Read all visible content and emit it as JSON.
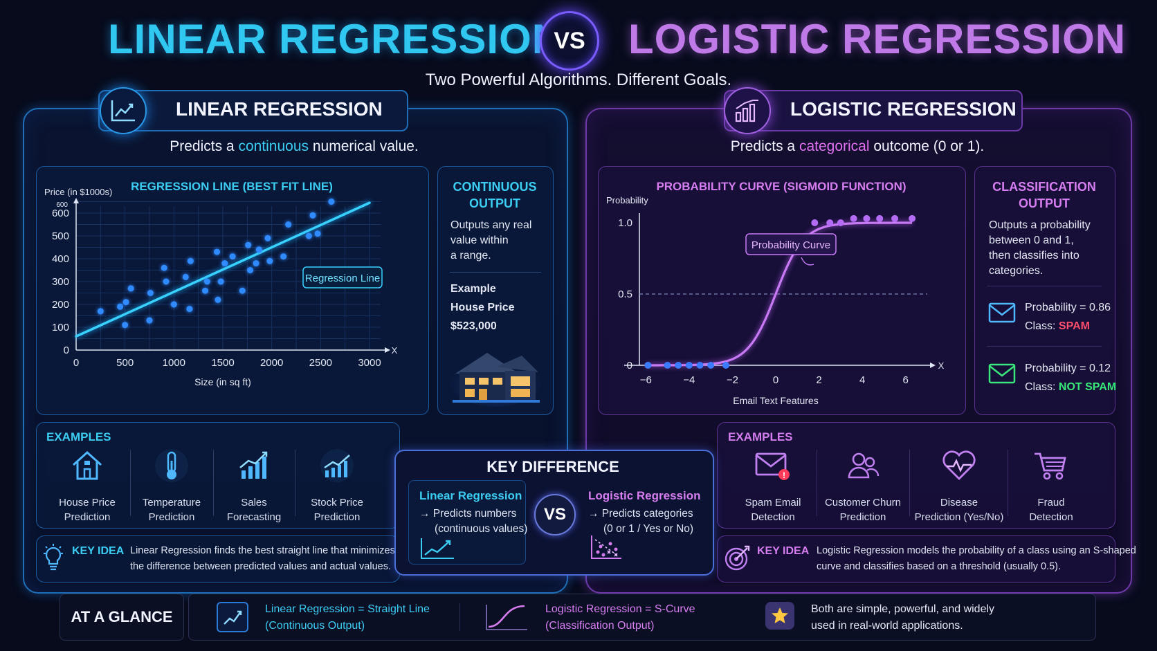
{
  "header": {
    "title_left": "LINEAR REGRESSION",
    "vs": "VS",
    "title_right": "LOGISTIC REGRESSION",
    "subtitle": "Two Powerful Algorithms. Different Goals."
  },
  "linear": {
    "heading": "LINEAR REGRESSION",
    "tagline_pre": "Predicts a ",
    "tagline_highlight": "continuous",
    "tagline_post": " numerical value.",
    "chart": {
      "title": "REGRESSION LINE (BEST FIT LINE)",
      "ylabel": "Price (in $1000s)",
      "xlabel": "Size (in sq ft)",
      "top_tick": "600",
      "x_axis_letter": "X",
      "annotation": "Regression Line"
    },
    "side": {
      "title_line1": "CONTINUOUS",
      "title_line2": "OUTPUT",
      "desc_line1": "Outputs any real",
      "desc_line2": "value within",
      "desc_line3": "a range.",
      "example_label": "Example",
      "example_name": "House Price",
      "example_value": "$523,000"
    },
    "examples_title": "EXAMPLES",
    "examples": [
      {
        "line1": "House Price",
        "line2": "Prediction",
        "icon": "house-icon"
      },
      {
        "line1": "Temperature",
        "line2": "Prediction",
        "icon": "thermometer-icon"
      },
      {
        "line1": "Sales",
        "line2": "Forecasting",
        "icon": "sales-chart-icon"
      },
      {
        "line1": "Stock Price",
        "line2": "Prediction",
        "icon": "stock-chart-icon"
      }
    ],
    "key_idea_label": "KEY IDEA",
    "key_idea_line1": "Linear Regression finds the best straight line that minimizes",
    "key_idea_line2": "the difference between predicted values and actual values."
  },
  "logistic": {
    "heading": "LOGISTIC REGRESSION",
    "tagline_pre": "Predicts a ",
    "tagline_highlight": "categorical",
    "tagline_post": " outcome (0 or 1).",
    "chart": {
      "title": "PROBABILITY CURVE (SIGMOID FUNCTION)",
      "ylabel": "Probability",
      "xlabel": "Email Text Features",
      "x_axis_letter": "X",
      "annotation": "Probability Curve"
    },
    "side": {
      "title_line1": "CLASSIFICATION",
      "title_line2": "OUTPUT",
      "desc_line1": "Outputs a probability",
      "desc_line2": "between 0 and 1,",
      "desc_line3": "then classifies into",
      "desc_line4": "categories.",
      "case1_prob": "Probability = 0.86",
      "case1_class_label": "Class: ",
      "case1_class": "SPAM",
      "case2_prob": "Probability = 0.12",
      "case2_class_label": "Class: ",
      "case2_class": "NOT SPAM"
    },
    "examples_title": "EXAMPLES",
    "examples": [
      {
        "line1": "Spam Email",
        "line2": "Detection",
        "icon": "spam-mail-icon"
      },
      {
        "line1": "Customer Churn",
        "line2": "Prediction",
        "icon": "users-icon"
      },
      {
        "line1": "Disease",
        "line2": "Prediction (Yes/No)",
        "icon": "heart-pulse-icon"
      },
      {
        "line1": "Fraud",
        "line2": "Detection",
        "icon": "cart-icon"
      }
    ],
    "key_idea_label": "KEY IDEA",
    "key_idea_line1": "Logistic Regression models the probability of a class using an S-shaped",
    "key_idea_line2": "curve and classifies based on a threshold (usually 0.5)."
  },
  "key_difference": {
    "title": "KEY DIFFERENCE",
    "left_title": "Linear Regression",
    "left_line1": "→ Predicts numbers",
    "left_line2": "(continuous values)",
    "vs": "VS",
    "right_title": "Logistic Regression",
    "right_line1": "→ Predicts categories",
    "right_line2": "(0 or 1 / Yes or No)"
  },
  "at_a_glance": {
    "label": "AT A GLANCE",
    "item1_line1": "Linear Regression = Straight Line",
    "item1_line2": "(Continuous Output)",
    "item2_line1": "Logistic Regression = S-Curve",
    "item2_line2": "(Classification Output)",
    "item3_line1": "Both are simple, powerful, and widely",
    "item3_line2": "used in real-world applications."
  },
  "colors": {
    "linear_accent": "#3ccdf2",
    "logistic_accent": "#c07ae8",
    "spam": "#ff4d6d",
    "not_spam": "#38e87a"
  },
  "chart_data": [
    {
      "type": "scatter",
      "title": "REGRESSION LINE (BEST FIT LINE)",
      "xlabel": "Size (in sq ft)",
      "ylabel": "Price (in $1000s)",
      "xlim": [
        0,
        3000
      ],
      "ylim": [
        0,
        600
      ],
      "x_ticks": [
        0,
        500,
        1000,
        1500,
        2000,
        2500,
        3000
      ],
      "y_ticks": [
        0,
        100,
        200,
        300,
        400,
        500,
        600
      ],
      "grid": true,
      "series": [
        {
          "name": "Regression Line",
          "kind": "line",
          "x": [
            0,
            3000
          ],
          "y": [
            60,
            645
          ]
        }
      ],
      "points": {
        "x": [
          250,
          450,
          500,
          510,
          560,
          750,
          760,
          900,
          920,
          1000,
          1120,
          1160,
          1170,
          1320,
          1340,
          1440,
          1450,
          1480,
          1520,
          1600,
          1700,
          1760,
          1780,
          1840,
          1870,
          1960,
          1980,
          2120,
          2170,
          2380,
          2420,
          2470,
          2610
        ],
        "y": [
          170,
          190,
          110,
          210,
          270,
          130,
          250,
          360,
          300,
          200,
          320,
          180,
          390,
          260,
          300,
          430,
          220,
          300,
          380,
          410,
          260,
          460,
          350,
          380,
          440,
          490,
          390,
          410,
          550,
          500,
          590,
          510,
          650
        ]
      }
    },
    {
      "type": "line",
      "title": "PROBABILITY CURVE (SIGMOID FUNCTION)",
      "xlabel": "Email Text Features",
      "ylabel": "Probability",
      "xlim": [
        -7,
        7
      ],
      "ylim": [
        0,
        1.0
      ],
      "x_ticks": [
        -6,
        -4,
        -2,
        0,
        2,
        4,
        6
      ],
      "y_ticks": [
        0,
        0.5,
        1.0
      ],
      "threshold": 0.5,
      "series": [
        {
          "name": "Probability Curve",
          "kind": "sigmoid",
          "x_range": [
            -6,
            6.3
          ]
        }
      ],
      "points": {
        "x": [
          -5.9,
          -5,
          -4.5,
          -4,
          -3.5,
          -3,
          -2.3,
          1.8,
          2.5,
          3,
          3.6,
          4.2,
          4.8,
          5.5,
          6.3
        ],
        "y": [
          0,
          0,
          0,
          0,
          0,
          0,
          0,
          1,
          1,
          1,
          1.03,
          1.03,
          1.03,
          1.03,
          1.03
        ]
      }
    }
  ]
}
